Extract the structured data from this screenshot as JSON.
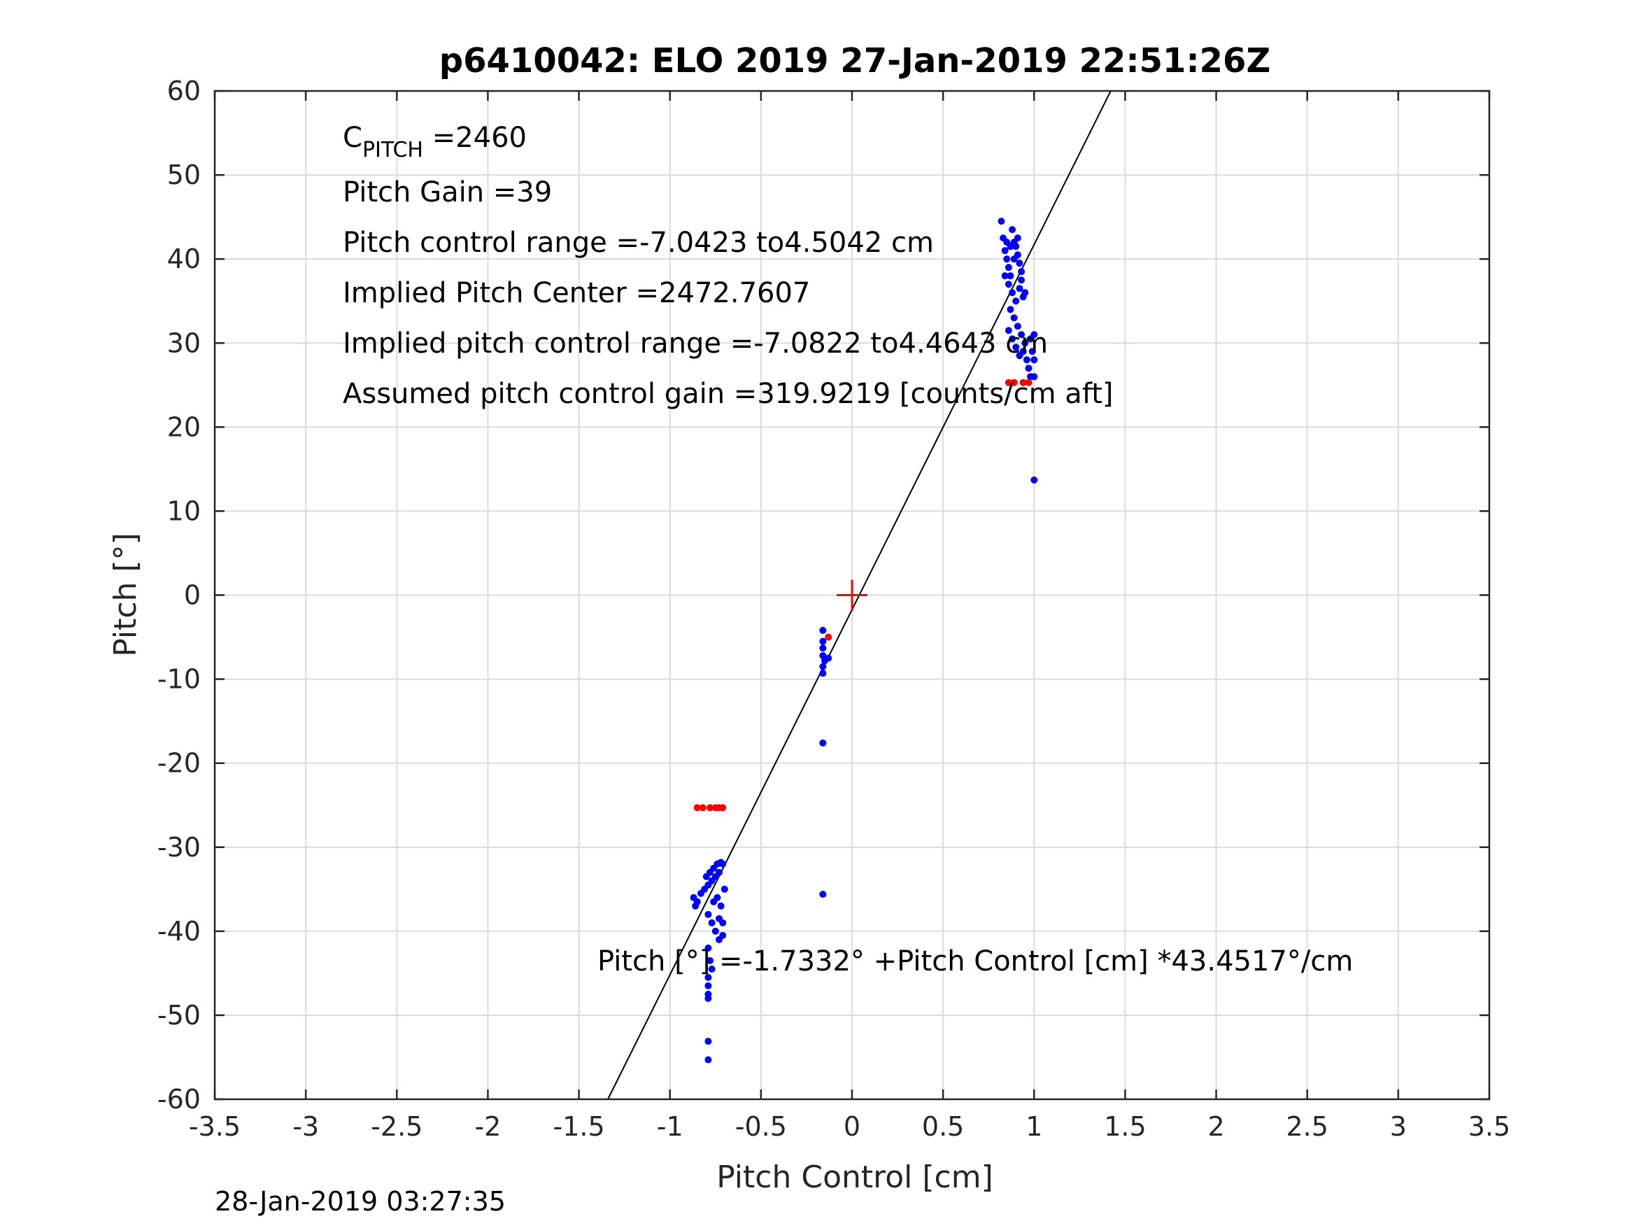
{
  "chart_data": {
    "type": "scatter",
    "title": "p6410042: ELO 2019 27-Jan-2019 22:51:26Z",
    "xlabel": "Pitch Control [cm]",
    "ylabel": "Pitch [°]",
    "xlim": [
      -3.5,
      3.5
    ],
    "ylim": [
      -60,
      60
    ],
    "xticks": [
      -3.5,
      -3,
      -2.5,
      -2,
      -1.5,
      -1,
      -0.5,
      0,
      0.5,
      1,
      1.5,
      2,
      2.5,
      3,
      3.5
    ],
    "xtick_labels": [
      "-3.5",
      "-3",
      "-2.5",
      "-2",
      "-1.5",
      "-1",
      "-0.5",
      "0",
      "0.5",
      "1",
      "1.5",
      "2",
      "2.5",
      "3",
      "3.5"
    ],
    "yticks": [
      60,
      50,
      40,
      30,
      20,
      10,
      0,
      -10,
      -20,
      -30,
      -40,
      -50,
      -60
    ],
    "ytick_labels": [
      "60",
      "50",
      "40",
      "30",
      "20",
      "10",
      "0",
      "-10",
      "-20",
      "-30",
      "-40",
      "-50",
      "-60"
    ],
    "grid": true,
    "series": [
      {
        "color": "#0000ff",
        "marker": "dot",
        "points": [
          [
            0.82,
            44.5
          ],
          [
            0.83,
            42.5
          ],
          [
            0.84,
            41.0
          ],
          [
            0.85,
            40.0
          ],
          [
            0.86,
            39.0
          ],
          [
            0.87,
            38.0
          ],
          [
            0.88,
            43.5
          ],
          [
            0.89,
            42.0
          ],
          [
            0.9,
            41.5
          ],
          [
            0.91,
            40.5
          ],
          [
            0.92,
            39.5
          ],
          [
            0.93,
            38.5
          ],
          [
            0.84,
            38.0
          ],
          [
            0.86,
            37.0
          ],
          [
            0.88,
            36.0
          ],
          [
            0.9,
            35.0
          ],
          [
            0.92,
            36.5
          ],
          [
            0.94,
            35.5
          ],
          [
            0.87,
            34.0
          ],
          [
            0.89,
            33.0
          ],
          [
            0.91,
            32.0
          ],
          [
            0.93,
            31.0
          ],
          [
            0.95,
            30.0
          ],
          [
            0.86,
            31.5
          ],
          [
            0.88,
            30.5
          ],
          [
            0.9,
            29.5
          ],
          [
            0.92,
            28.5
          ],
          [
            0.94,
            29.0
          ],
          [
            0.96,
            28.0
          ],
          [
            0.97,
            27.0
          ],
          [
            0.98,
            26.0
          ],
          [
            1.0,
            26.0
          ],
          [
            0.99,
            29.0
          ],
          [
            1.0,
            31.0
          ],
          [
            0.98,
            30.5
          ],
          [
            1.0,
            28.0
          ],
          [
            0.85,
            42.0
          ],
          [
            0.87,
            41.5
          ],
          [
            0.89,
            40.0
          ],
          [
            0.91,
            42.5
          ],
          [
            0.93,
            37.5
          ],
          [
            0.95,
            36.0
          ],
          [
            1.0,
            13.7
          ],
          [
            -0.16,
            -4.2
          ],
          [
            -0.16,
            -5.5
          ],
          [
            -0.16,
            -6.3
          ],
          [
            -0.16,
            -7.2
          ],
          [
            -0.15,
            -7.8
          ],
          [
            -0.16,
            -8.5
          ],
          [
            -0.16,
            -9.3
          ],
          [
            -0.13,
            -7.5
          ],
          [
            -0.16,
            -17.6
          ],
          [
            -0.16,
            -35.6
          ],
          [
            -0.87,
            -36.0
          ],
          [
            -0.86,
            -37.0
          ],
          [
            -0.85,
            -36.5
          ],
          [
            -0.83,
            -35.5
          ],
          [
            -0.81,
            -35.0
          ],
          [
            -0.79,
            -34.5
          ],
          [
            -0.77,
            -34.0
          ],
          [
            -0.75,
            -33.5
          ],
          [
            -0.73,
            -33.0
          ],
          [
            -0.71,
            -32.0
          ],
          [
            -0.8,
            -33.5
          ],
          [
            -0.78,
            -33.0
          ],
          [
            -0.76,
            -32.5
          ],
          [
            -0.74,
            -32.0
          ],
          [
            -0.72,
            -31.8
          ],
          [
            -0.79,
            -38.0
          ],
          [
            -0.77,
            -39.0
          ],
          [
            -0.75,
            -40.0
          ],
          [
            -0.73,
            -41.0
          ],
          [
            -0.71,
            -40.5
          ],
          [
            -0.79,
            -42.0
          ],
          [
            -0.78,
            -43.5
          ],
          [
            -0.77,
            -44.5
          ],
          [
            -0.79,
            -45.5
          ],
          [
            -0.79,
            -46.5
          ],
          [
            -0.79,
            -47.5
          ],
          [
            -0.79,
            -48.0
          ],
          [
            -0.74,
            -36.0
          ],
          [
            -0.72,
            -37.0
          ],
          [
            -0.7,
            -35.0
          ],
          [
            -0.76,
            -36.5
          ],
          [
            -0.73,
            -38.5
          ],
          [
            -0.71,
            -39.0
          ],
          [
            -0.79,
            -53.1
          ],
          [
            -0.79,
            -55.3
          ]
        ]
      },
      {
        "color": "#ff0000",
        "marker": "dot",
        "points": [
          [
            -0.85,
            -25.3
          ],
          [
            -0.82,
            -25.3
          ],
          [
            -0.78,
            -25.3
          ],
          [
            -0.75,
            -25.3
          ],
          [
            -0.73,
            -25.3
          ],
          [
            -0.71,
            -25.3
          ],
          [
            0.86,
            25.3
          ],
          [
            0.89,
            25.3
          ],
          [
            0.94,
            25.3
          ],
          [
            0.97,
            25.3
          ],
          [
            -0.13,
            -5.0
          ]
        ]
      }
    ],
    "fit_line": {
      "intercept": -1.7332,
      "slope": 43.4517,
      "color": "#000000"
    },
    "center_marker": {
      "x": 0,
      "y": 0,
      "shape": "plus",
      "color": "#ff0000"
    },
    "annotations": {
      "c_pitch_main": "C",
      "c_pitch_sub": "PITCH",
      "c_pitch_value": " =2460",
      "pitch_gain": "Pitch Gain =39",
      "control_range": "Pitch control range =-7.0423 to4.5042 cm",
      "implied_center": "Implied Pitch Center =2472.7607",
      "implied_range": "Implied pitch control range =-7.0822 to4.4643 cm",
      "assumed_gain": "Assumed pitch control gain =319.9219 [counts/cm aft]",
      "fit_equation": "Pitch [°] =-1.7332° +Pitch Control [cm] *43.4517°/cm"
    },
    "footer_timestamp": "28-Jan-2019 03:27:35"
  }
}
